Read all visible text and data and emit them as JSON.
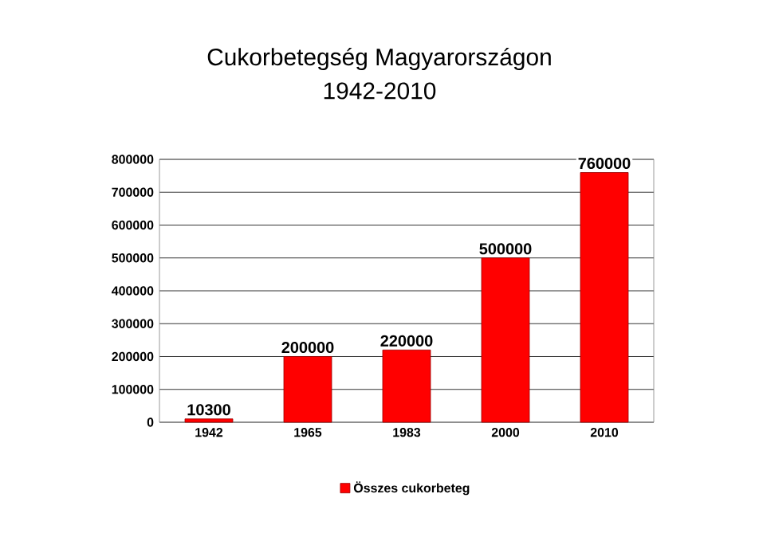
{
  "chart_data": {
    "type": "bar",
    "title": "Cukorbetegség Magyarországon",
    "subtitle": "1942-2010",
    "categories": [
      "1942",
      "1965",
      "1983",
      "2000",
      "2010"
    ],
    "series": [
      {
        "name": "Összes cukorbeteg",
        "color": "#ff0000",
        "values": [
          10300,
          200000,
          220000,
          500000,
          760000
        ]
      }
    ],
    "ylim": [
      0,
      800000
    ],
    "yticks": [
      0,
      100000,
      200000,
      300000,
      400000,
      500000,
      600000,
      700000,
      800000
    ],
    "grid": "y",
    "legend": "bottom",
    "data_labels": true
  }
}
